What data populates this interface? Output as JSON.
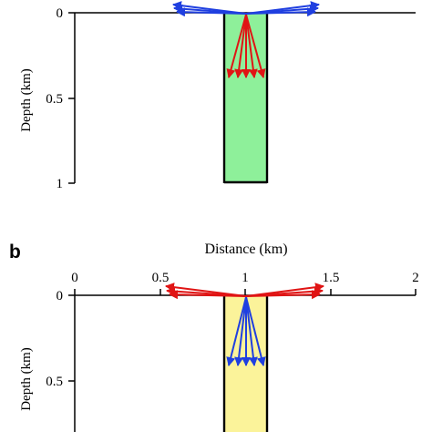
{
  "colors": {
    "blue_arrow": "#1f3fe0",
    "red_arrow": "#e01414",
    "green_fill": "#8ef09a",
    "yellow_fill": "#fbf39a",
    "axis": "#000000"
  },
  "panel_a": {
    "ylabel": "Depth (km)",
    "y_ticks": [
      "0",
      "0.5",
      "1"
    ],
    "surface_arrows_color": "blue",
    "depth_arrows_color": "red"
  },
  "panel_b": {
    "label": "b",
    "xlabel": "Distance (km)",
    "x_ticks": [
      "0",
      "0.5",
      "1",
      "1.5",
      "2"
    ],
    "ylabel": "Depth (km)",
    "y_ticks": [
      "0",
      "0.5"
    ],
    "surface_arrows_color": "red",
    "depth_arrows_color": "blue"
  },
  "geometry_data": {
    "x_range_km": [
      0,
      2
    ],
    "depth_range_km": [
      0,
      1
    ],
    "column_x_km": [
      0.87,
      1.12
    ],
    "column_depth_km": [
      0,
      1
    ],
    "source_x_km": 1.0,
    "depth_arrow_end_km": 0.37,
    "depth_arrow_x_km": [
      0.89,
      0.95,
      1.0,
      1.05,
      1.11
    ],
    "surface_arrow_x_km": [
      0.57,
      1.44
    ]
  }
}
